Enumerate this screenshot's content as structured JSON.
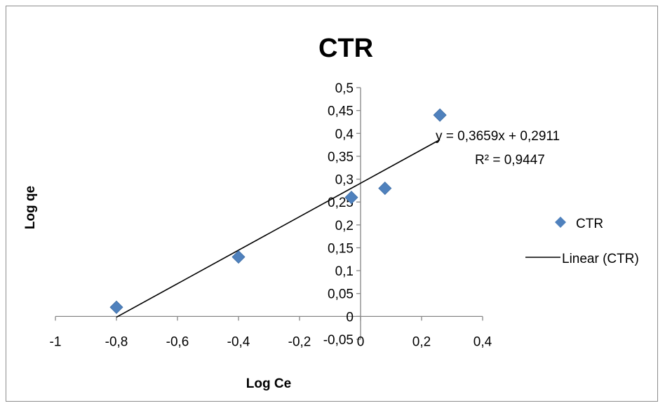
{
  "chart_data": {
    "type": "scatter",
    "title": "CTR",
    "xlabel": "Log Ce",
    "ylabel": "Log qe",
    "xlim": [
      -1,
      0.4
    ],
    "ylim": [
      -0.05,
      0.5
    ],
    "xticks": [
      -1,
      -0.8,
      -0.6,
      -0.4,
      -0.2,
      0,
      0.2,
      0.4
    ],
    "xtick_labels": [
      "-1",
      "-0,8",
      "-0,6",
      "-0,4",
      "-0,2",
      "0",
      "0,2",
      "0,4"
    ],
    "yticks": [
      -0.05,
      0,
      0.05,
      0.1,
      0.15,
      0.2,
      0.25,
      0.3,
      0.35,
      0.4,
      0.45,
      0.5
    ],
    "ytick_labels": [
      "-0,05",
      "0",
      "0,05",
      "0,1",
      "0,15",
      "0,2",
      "0,25",
      "0,3",
      "0,35",
      "0,4",
      "0,45",
      "0,5"
    ],
    "grid": false,
    "legend_position": "right",
    "series": [
      {
        "name": "CTR",
        "color": "#4f81bd",
        "marker": "diamond",
        "x": [
          -0.8,
          -0.4,
          -0.03,
          0.08,
          0.26
        ],
        "y": [
          0.02,
          0.13,
          0.26,
          0.28,
          0.44
        ]
      }
    ],
    "trendline": {
      "name": "Linear (CTR)",
      "color": "#000000",
      "slope": 0.3659,
      "intercept": 0.2911,
      "x_range": [
        -0.8,
        0.26
      ],
      "equation": "y = 0,3659x + 0,2911",
      "r_squared": "R² = 0,9447"
    }
  }
}
